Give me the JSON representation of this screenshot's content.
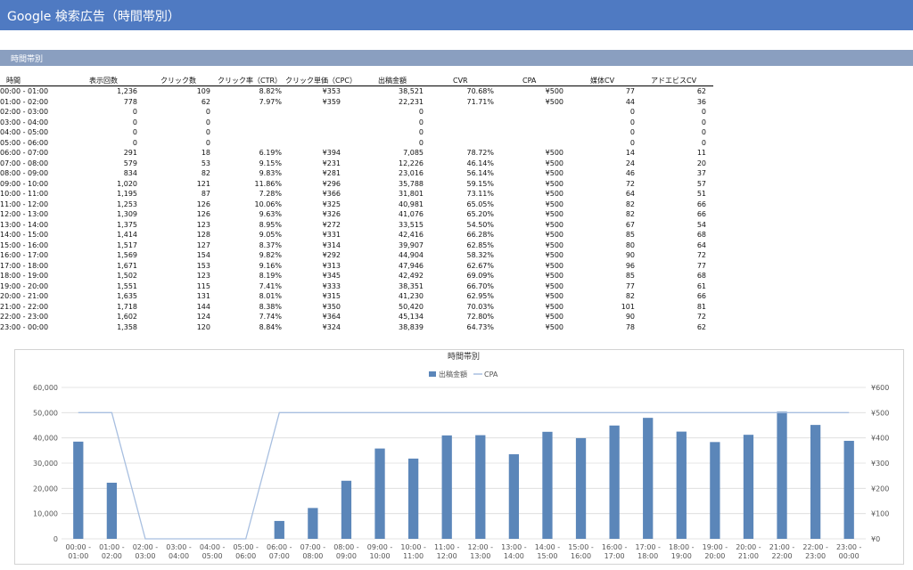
{
  "header": {
    "title": "Google 検索広告（時間帯別）"
  },
  "section": {
    "label": "時間帯別"
  },
  "table": {
    "columns": [
      "時間",
      "表示回数",
      "クリック数",
      "クリック率（CTR）",
      "クリック単価（CPC）",
      "出稿金額",
      "CVR",
      "CPA",
      "媒体CV",
      "アドエビスCV"
    ],
    "rows": [
      [
        "00:00 - 01:00",
        "1,236",
        "109",
        "8.82%",
        "¥353",
        "38,521",
        "70.68%",
        "¥500",
        "77",
        "62"
      ],
      [
        "01:00 - 02:00",
        "778",
        "62",
        "7.97%",
        "¥359",
        "22,231",
        "71.71%",
        "¥500",
        "44",
        "36"
      ],
      [
        "02:00 - 03:00",
        "0",
        "0",
        "",
        "",
        "0",
        "",
        "",
        "0",
        "0"
      ],
      [
        "03:00 - 04:00",
        "0",
        "0",
        "",
        "",
        "0",
        "",
        "",
        "0",
        "0"
      ],
      [
        "04:00 - 05:00",
        "0",
        "0",
        "",
        "",
        "0",
        "",
        "",
        "0",
        "0"
      ],
      [
        "05:00 - 06:00",
        "0",
        "0",
        "",
        "",
        "0",
        "",
        "",
        "0",
        "0"
      ],
      [
        "06:00 - 07:00",
        "291",
        "18",
        "6.19%",
        "¥394",
        "7,085",
        "78.72%",
        "¥500",
        "14",
        "11"
      ],
      [
        "07:00 - 08:00",
        "579",
        "53",
        "9.15%",
        "¥231",
        "12,226",
        "46.14%",
        "¥500",
        "24",
        "20"
      ],
      [
        "08:00 - 09:00",
        "834",
        "82",
        "9.83%",
        "¥281",
        "23,016",
        "56.14%",
        "¥500",
        "46",
        "37"
      ],
      [
        "09:00 - 10:00",
        "1,020",
        "121",
        "11.86%",
        "¥296",
        "35,788",
        "59.15%",
        "¥500",
        "72",
        "57"
      ],
      [
        "10:00 - 11:00",
        "1,195",
        "87",
        "7.28%",
        "¥366",
        "31,801",
        "73.11%",
        "¥500",
        "64",
        "51"
      ],
      [
        "11:00 - 12:00",
        "1,253",
        "126",
        "10.06%",
        "¥325",
        "40,981",
        "65.05%",
        "¥500",
        "82",
        "66"
      ],
      [
        "12:00 - 13:00",
        "1,309",
        "126",
        "9.63%",
        "¥326",
        "41,076",
        "65.20%",
        "¥500",
        "82",
        "66"
      ],
      [
        "13:00 - 14:00",
        "1,375",
        "123",
        "8.95%",
        "¥272",
        "33,515",
        "54.50%",
        "¥500",
        "67",
        "54"
      ],
      [
        "14:00 - 15:00",
        "1,414",
        "128",
        "9.05%",
        "¥331",
        "42,416",
        "66.28%",
        "¥500",
        "85",
        "68"
      ],
      [
        "15:00 - 16:00",
        "1,517",
        "127",
        "8.37%",
        "¥314",
        "39,907",
        "62.85%",
        "¥500",
        "80",
        "64"
      ],
      [
        "16:00 - 17:00",
        "1,569",
        "154",
        "9.82%",
        "¥292",
        "44,904",
        "58.32%",
        "¥500",
        "90",
        "72"
      ],
      [
        "17:00 - 18:00",
        "1,671",
        "153",
        "9.16%",
        "¥313",
        "47,946",
        "62.67%",
        "¥500",
        "96",
        "77"
      ],
      [
        "18:00 - 19:00",
        "1,502",
        "123",
        "8.19%",
        "¥345",
        "42,492",
        "69.09%",
        "¥500",
        "85",
        "68"
      ],
      [
        "19:00 - 20:00",
        "1,551",
        "115",
        "7.41%",
        "¥333",
        "38,351",
        "66.70%",
        "¥500",
        "77",
        "61"
      ],
      [
        "20:00 - 21:00",
        "1,635",
        "131",
        "8.01%",
        "¥315",
        "41,230",
        "62.95%",
        "¥500",
        "82",
        "66"
      ],
      [
        "21:00 - 22:00",
        "1,718",
        "144",
        "8.38%",
        "¥350",
        "50,420",
        "70.03%",
        "¥500",
        "101",
        "81"
      ],
      [
        "22:00 - 23:00",
        "1,602",
        "124",
        "7.74%",
        "¥364",
        "45,134",
        "72.80%",
        "¥500",
        "90",
        "72"
      ],
      [
        "23:00 - 00:00",
        "1,358",
        "120",
        "8.84%",
        "¥324",
        "38,839",
        "64.73%",
        "¥500",
        "78",
        "62"
      ]
    ]
  },
  "chart_data": {
    "type": "bar",
    "title": "時間帯別",
    "categories": [
      "00:00 - 01:00",
      "01:00 - 02:00",
      "02:00 - 03:00",
      "03:00 - 04:00",
      "04:00 - 05:00",
      "05:00 - 06:00",
      "06:00 - 07:00",
      "07:00 - 08:00",
      "08:00 - 09:00",
      "09:00 - 10:00",
      "10:00 - 11:00",
      "11:00 - 12:00",
      "12:00 - 13:00",
      "13:00 - 14:00",
      "14:00 - 15:00",
      "15:00 - 16:00",
      "16:00 - 17:00",
      "17:00 - 18:00",
      "18:00 - 19:00",
      "19:00 - 20:00",
      "20:00 - 21:00",
      "21:00 - 22:00",
      "22:00 - 23:00",
      "23:00 - 00:00"
    ],
    "series": [
      {
        "name": "出稿金額",
        "type": "bar",
        "axis": "left",
        "color": "#5b86b9",
        "values": [
          38521,
          22231,
          0,
          0,
          0,
          0,
          7085,
          12226,
          23016,
          35788,
          31801,
          40981,
          41076,
          33515,
          42416,
          39907,
          44904,
          47946,
          42492,
          38351,
          41230,
          50420,
          45134,
          38839
        ]
      },
      {
        "name": "CPA",
        "type": "line",
        "axis": "right",
        "color": "#a8bfe0",
        "values": [
          500,
          500,
          0,
          0,
          0,
          0,
          500,
          500,
          500,
          500,
          500,
          500,
          500,
          500,
          500,
          500,
          500,
          500,
          500,
          500,
          500,
          500,
          500,
          500
        ]
      }
    ],
    "ylim_left": [
      0,
      60000
    ],
    "ylim_right": [
      0,
      600
    ],
    "y_ticks_left": [
      "0",
      "10,000",
      "20,000",
      "30,000",
      "40,000",
      "50,000",
      "60,000"
    ],
    "y_ticks_right": [
      "¥0",
      "¥100",
      "¥200",
      "¥300",
      "¥400",
      "¥500",
      "¥600"
    ],
    "legend_placement": "top-center",
    "grid": true
  }
}
